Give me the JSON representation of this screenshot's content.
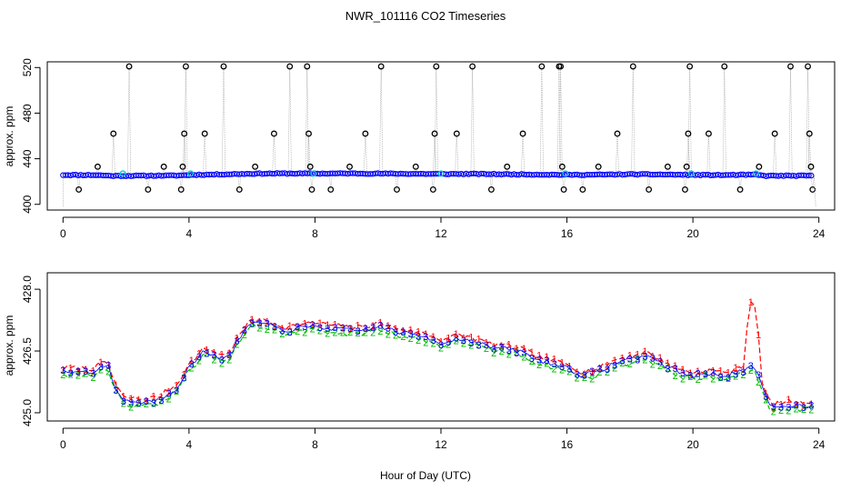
{
  "title": "NWR_101116  CO2 Timeseries",
  "xlabel": "Hour of Day (UTC)",
  "colors": {
    "outlier": "#000000",
    "main": "#0000ff",
    "flagged": "#00cccc",
    "grey_line": "#999999",
    "series1": "#ff0000",
    "series2": "#00bb00",
    "series3": "#0000ff"
  },
  "chart_data": [
    {
      "type": "scatter",
      "title": "NWR_101116  CO2 Timeseries",
      "xlabel": "",
      "ylabel": "approx. ppm",
      "xlim": [
        -0.5,
        24.5
      ],
      "ylim": [
        395,
        525
      ],
      "xticks": [
        0,
        4,
        8,
        12,
        16,
        20,
        24
      ],
      "yticks": [
        400,
        440,
        480,
        520
      ],
      "ytick_labels": [
        "400",
        "440",
        "480",
        "520"
      ],
      "xtick_labels": [
        "0",
        "4",
        "8",
        "12",
        "16",
        "20",
        "24"
      ],
      "baseline": [
        [
          0.0,
          425.8
        ],
        [
          1.0,
          425.7
        ],
        [
          1.6,
          425.0
        ],
        [
          2.6,
          425.1
        ],
        [
          3.6,
          425.3
        ],
        [
          4.2,
          425.9
        ],
        [
          5.0,
          426.3
        ],
        [
          6.0,
          426.9
        ],
        [
          7.0,
          427.1
        ],
        [
          8.0,
          427.0
        ],
        [
          9.0,
          427.1
        ],
        [
          10.0,
          427.0
        ],
        [
          11.0,
          426.8
        ],
        [
          12.0,
          426.6
        ],
        [
          13.0,
          426.7
        ],
        [
          14.0,
          426.4
        ],
        [
          15.0,
          426.2
        ],
        [
          16.0,
          425.9
        ],
        [
          17.0,
          426.0
        ],
        [
          18.0,
          426.4
        ],
        [
          19.0,
          426.2
        ],
        [
          20.0,
          425.8
        ],
        [
          21.0,
          425.7
        ],
        [
          22.0,
          426.0
        ],
        [
          22.3,
          425.0
        ],
        [
          23.0,
          425.1
        ],
        [
          23.8,
          425.1
        ]
      ],
      "outliers": [
        [
          0.5,
          413
        ],
        [
          1.1,
          433
        ],
        [
          1.6,
          462
        ],
        [
          2.1,
          521
        ],
        [
          2.7,
          413
        ],
        [
          3.2,
          433
        ],
        [
          3.75,
          413
        ],
        [
          3.8,
          433
        ],
        [
          3.85,
          462
        ],
        [
          3.9,
          521
        ],
        [
          4.5,
          462
        ],
        [
          5.1,
          521
        ],
        [
          5.6,
          413
        ],
        [
          6.1,
          433
        ],
        [
          6.7,
          462
        ],
        [
          7.2,
          521
        ],
        [
          7.75,
          521
        ],
        [
          7.8,
          462
        ],
        [
          7.85,
          433
        ],
        [
          7.9,
          413
        ],
        [
          8.5,
          413
        ],
        [
          9.1,
          433
        ],
        [
          9.6,
          462
        ],
        [
          10.1,
          521
        ],
        [
          10.6,
          413
        ],
        [
          11.2,
          433
        ],
        [
          11.75,
          413
        ],
        [
          11.8,
          462
        ],
        [
          11.85,
          521
        ],
        [
          12.5,
          462
        ],
        [
          13.0,
          521
        ],
        [
          13.6,
          413
        ],
        [
          14.1,
          433
        ],
        [
          14.6,
          462
        ],
        [
          15.2,
          521
        ],
        [
          15.75,
          521
        ],
        [
          15.8,
          521
        ],
        [
          15.85,
          433
        ],
        [
          15.9,
          413
        ],
        [
          16.5,
          413
        ],
        [
          17.0,
          433
        ],
        [
          17.6,
          462
        ],
        [
          18.1,
          521
        ],
        [
          18.6,
          413
        ],
        [
          19.2,
          433
        ],
        [
          19.75,
          413
        ],
        [
          19.8,
          433
        ],
        [
          19.85,
          462
        ],
        [
          19.9,
          521
        ],
        [
          20.5,
          462
        ],
        [
          21.0,
          521
        ],
        [
          21.5,
          413
        ],
        [
          22.1,
          433
        ],
        [
          22.6,
          462
        ],
        [
          23.1,
          521
        ],
        [
          23.65,
          521
        ],
        [
          23.7,
          462
        ],
        [
          23.75,
          433
        ],
        [
          23.8,
          413
        ]
      ],
      "flagged_points": [
        [
          1.9,
          427
        ],
        [
          4.05,
          427
        ],
        [
          7.95,
          427
        ],
        [
          12.0,
          427
        ],
        [
          15.95,
          427
        ],
        [
          19.95,
          427
        ],
        [
          22.0,
          427
        ]
      ]
    },
    {
      "type": "line",
      "title": "",
      "xlabel": "Hour of Day (UTC)",
      "ylabel": "approx. ppm",
      "xlim": [
        -0.5,
        24.5
      ],
      "ylim": [
        424.8,
        428.4
      ],
      "xticks": [
        0,
        4,
        8,
        12,
        16,
        20,
        24
      ],
      "yticks": [
        425.0,
        426.5,
        428.0
      ],
      "ytick_labels": [
        "425.0",
        "426.5",
        "428.0"
      ],
      "xtick_labels": [
        "0",
        "4",
        "8",
        "12",
        "16",
        "20",
        "24"
      ],
      "series": [
        {
          "name": "1",
          "marker": "1"
        },
        {
          "name": "2",
          "marker": "2"
        },
        {
          "name": "3",
          "marker": "3"
        }
      ],
      "x": [
        0.0,
        1.0,
        1.4,
        1.6,
        1.9,
        2.5,
        3.0,
        3.6,
        4.0,
        4.5,
        4.8,
        5.2,
        5.6,
        6.0,
        6.4,
        7.0,
        7.5,
        8.0,
        8.5,
        9.0,
        9.5,
        10.0,
        10.5,
        11.0,
        11.5,
        12.0,
        12.5,
        13.0,
        13.5,
        14.0,
        14.5,
        15.0,
        15.5,
        16.0,
        16.5,
        17.0,
        17.5,
        18.0,
        18.5,
        19.0,
        19.5,
        20.0,
        20.5,
        21.0,
        21.5,
        21.8,
        22.0,
        22.2,
        22.5,
        23.0,
        23.5,
        23.8
      ],
      "values": [
        426.0,
        426.0,
        426.2,
        425.7,
        425.3,
        425.25,
        425.3,
        425.6,
        426.1,
        426.5,
        426.4,
        426.3,
        426.8,
        427.2,
        427.15,
        427.0,
        427.05,
        427.1,
        427.05,
        427.0,
        427.0,
        427.1,
        427.0,
        426.9,
        426.85,
        426.7,
        426.8,
        426.75,
        426.6,
        426.55,
        426.5,
        426.3,
        426.2,
        426.1,
        425.9,
        426.0,
        426.2,
        426.3,
        426.4,
        426.2,
        426.0,
        425.9,
        425.95,
        425.9,
        426.0,
        426.1,
        426.05,
        425.6,
        425.1,
        425.2,
        425.15,
        425.2
      ]
    }
  ]
}
